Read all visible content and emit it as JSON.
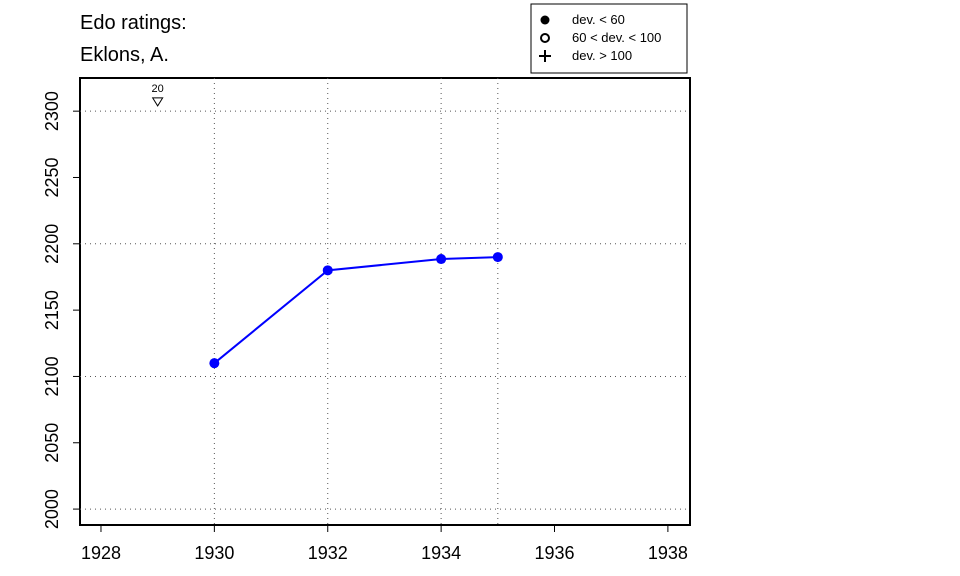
{
  "chart_data": {
    "type": "line",
    "title": [
      "Edo ratings:",
      "Eklons, A."
    ],
    "x": [
      1930,
      1932,
      1934,
      1935
    ],
    "series": [
      {
        "color": "#0000ff",
        "values": [
          2110,
          2180,
          2188.5,
          2190
        ]
      }
    ],
    "xlim": [
      1927.63,
      1938.39
    ],
    "ylim": [
      1988,
      2325
    ],
    "xticks": [
      1928,
      1930,
      1932,
      1934,
      1936,
      1938
    ],
    "yticks": [
      2000,
      2050,
      2100,
      2150,
      2200,
      2250,
      2300
    ],
    "grid_y": [
      2000,
      2100,
      2200,
      2300
    ],
    "grid_x_at_data": true,
    "annotations": [
      {
        "x": 1929,
        "y": 2307,
        "label": "20",
        "marker": "down-triangle"
      }
    ],
    "legend": [
      {
        "label": "dev. < 60",
        "marker": "filled-circle"
      },
      {
        "label": "60 < dev. < 100",
        "marker": "open-circle"
      },
      {
        "label": "dev. > 100",
        "marker": "plus"
      }
    ]
  }
}
